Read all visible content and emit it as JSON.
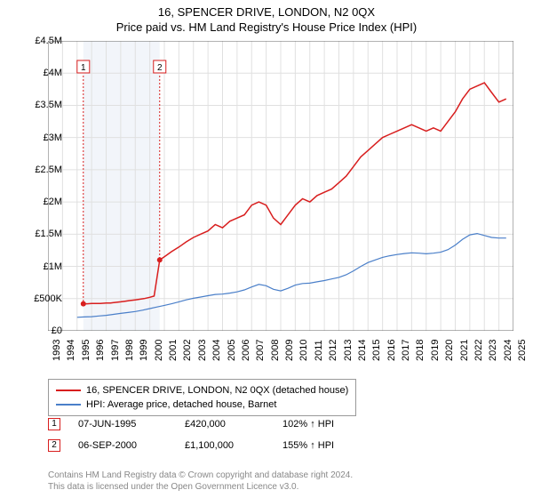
{
  "title": "16, SPENCER DRIVE, LONDON, N2 0QX",
  "subtitle": "Price paid vs. HM Land Registry's House Price Index (HPI)",
  "chart": {
    "type": "line",
    "background_color": "#ffffff",
    "grid_color": "#e0e0e0",
    "axis_color": "#666666",
    "band_color": "#f2f5fa",
    "band_xmin": 1995.43,
    "band_xmax": 2000.68,
    "xlim": [
      1993,
      2025
    ],
    "ylim": [
      0,
      4500000
    ],
    "yticks": [
      0,
      500000,
      1000000,
      1500000,
      2000000,
      2500000,
      3000000,
      3500000,
      4000000,
      4500000
    ],
    "ytick_labels": [
      "£0",
      "£500K",
      "£1M",
      "£1.5M",
      "£2M",
      "£2.5M",
      "£3M",
      "£3.5M",
      "£4M",
      "£4.5M"
    ],
    "xticks": [
      1993,
      1994,
      1995,
      1996,
      1997,
      1998,
      1999,
      2000,
      2001,
      2002,
      2003,
      2004,
      2005,
      2006,
      2007,
      2008,
      2009,
      2010,
      2011,
      2012,
      2013,
      2014,
      2015,
      2016,
      2017,
      2018,
      2019,
      2020,
      2021,
      2022,
      2023,
      2024,
      2025
    ],
    "series": [
      {
        "name": "price_paid",
        "label": "16, SPENCER DRIVE, LONDON, N2 0QX (detached house)",
        "color": "#d81e1e",
        "line_width": 1.5,
        "x": [
          1995.43,
          1995.7,
          1996,
          1996.3,
          1996.6,
          1997,
          1997.3,
          1997.6,
          1998,
          1998.3,
          1998.6,
          1999,
          1999.3,
          1999.6,
          2000,
          2000.3,
          2000.68,
          2001,
          2001.5,
          2002,
          2002.5,
          2003,
          2003.5,
          2004,
          2004.5,
          2005,
          2005.5,
          2006,
          2006.5,
          2007,
          2007.5,
          2008,
          2008.5,
          2009,
          2009.5,
          2010,
          2010.5,
          2011,
          2011.5,
          2012,
          2012.5,
          2013,
          2013.5,
          2014,
          2014.5,
          2015,
          2015.5,
          2016,
          2016.5,
          2017,
          2017.5,
          2018,
          2018.5,
          2019,
          2019.5,
          2020,
          2020.5,
          2021,
          2021.5,
          2022,
          2022.5,
          2023,
          2023.5,
          2024,
          2024.5
        ],
        "y": [
          420000,
          420000,
          425000,
          425000,
          425000,
          430000,
          430000,
          440000,
          450000,
          460000,
          470000,
          480000,
          490000,
          500000,
          520000,
          540000,
          1100000,
          1150000,
          1230000,
          1300000,
          1380000,
          1450000,
          1500000,
          1550000,
          1650000,
          1600000,
          1700000,
          1750000,
          1800000,
          1950000,
          2000000,
          1950000,
          1750000,
          1650000,
          1800000,
          1950000,
          2050000,
          2000000,
          2100000,
          2150000,
          2200000,
          2300000,
          2400000,
          2550000,
          2700000,
          2800000,
          2900000,
          3000000,
          3050000,
          3100000,
          3150000,
          3200000,
          3150000,
          3100000,
          3150000,
          3100000,
          3250000,
          3400000,
          3600000,
          3750000,
          3800000,
          3850000,
          3700000,
          3550000,
          3600000
        ]
      },
      {
        "name": "hpi",
        "label": "HPI: Average price, detached house, Barnet",
        "color": "#4a7fc9",
        "line_width": 1.2,
        "x": [
          1995,
          1995.5,
          1996,
          1996.5,
          1997,
          1997.5,
          1998,
          1998.5,
          1999,
          1999.5,
          2000,
          2000.5,
          2001,
          2001.5,
          2002,
          2002.5,
          2003,
          2003.5,
          2004,
          2004.5,
          2005,
          2005.5,
          2006,
          2006.5,
          2007,
          2007.5,
          2008,
          2008.5,
          2009,
          2009.5,
          2010,
          2010.5,
          2011,
          2011.5,
          2012,
          2012.5,
          2013,
          2013.5,
          2014,
          2014.5,
          2015,
          2015.5,
          2016,
          2016.5,
          2017,
          2017.5,
          2018,
          2018.5,
          2019,
          2019.5,
          2020,
          2020.5,
          2021,
          2021.5,
          2022,
          2022.5,
          2023,
          2023.5,
          2024,
          2024.5
        ],
        "y": [
          210000,
          215000,
          220000,
          230000,
          240000,
          255000,
          270000,
          285000,
          300000,
          320000,
          345000,
          370000,
          395000,
          420000,
          450000,
          480000,
          505000,
          525000,
          545000,
          565000,
          570000,
          585000,
          605000,
          635000,
          680000,
          720000,
          700000,
          645000,
          620000,
          660000,
          710000,
          735000,
          740000,
          760000,
          780000,
          805000,
          830000,
          870000,
          930000,
          1000000,
          1060000,
          1100000,
          1140000,
          1165000,
          1185000,
          1200000,
          1210000,
          1205000,
          1195000,
          1205000,
          1220000,
          1260000,
          1330000,
          1420000,
          1490000,
          1510000,
          1480000,
          1450000,
          1440000,
          1440000
        ]
      }
    ],
    "sale_markers": [
      {
        "n": "1",
        "x": 1995.43,
        "y": 420000,
        "label_y": 4100000,
        "border": "#d81e1e"
      },
      {
        "n": "2",
        "x": 2000.68,
        "y": 1100000,
        "label_y": 4100000,
        "border": "#d81e1e"
      }
    ]
  },
  "legend": {
    "items": [
      {
        "color": "#d81e1e",
        "label": "16, SPENCER DRIVE, LONDON, N2 0QX (detached house)"
      },
      {
        "color": "#4a7fc9",
        "label": "HPI: Average price, detached house, Barnet"
      }
    ]
  },
  "sales": [
    {
      "n": "1",
      "date": "07-JUN-1995",
      "price": "£420,000",
      "pct": "102% ↑ HPI",
      "border": "#d81e1e"
    },
    {
      "n": "2",
      "date": "06-SEP-2000",
      "price": "£1,100,000",
      "pct": "155% ↑ HPI",
      "border": "#d81e1e"
    }
  ],
  "footer": {
    "line1": "Contains HM Land Registry data © Crown copyright and database right 2024.",
    "line2": "This data is licensed under the Open Government Licence v3.0."
  }
}
